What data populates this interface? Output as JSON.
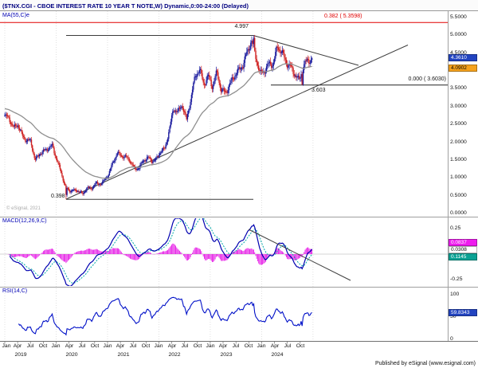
{
  "window": {
    "title": "($TNX.CGI - CBOE INTEREST RATE 10 YEAR T NOTE,W) Dynamic,0:00-24:00 (Delayed)"
  },
  "price_panel": {
    "indicator_label": "MA(55,C)e",
    "watermark": "© eSignal, 2021",
    "fib_upper_label": "0.382 ( 5.3598)",
    "fib_lower_label": "0.000 ( 3.6030)",
    "peak_label": "4.997",
    "low_label": "0.398",
    "level_label": "3.603",
    "axis_ticks": [
      "5.5000",
      "5.0000",
      "4.5000",
      "3.5000",
      "3.0000",
      "2.5000",
      "2.0000",
      "1.5000",
      "1.0000",
      "0.5000",
      "0.0000"
    ],
    "badges": {
      "last_price": {
        "text": "4.3610",
        "bg": "#2244c0",
        "fg": "#ffffff"
      },
      "ma_value": {
        "text": "4.0902",
        "bg": "#f5a21d",
        "fg": "#000000"
      }
    }
  },
  "macd_panel": {
    "indicator_label": "MACD(12,26,9,C)",
    "axis_ticks": [
      "0.25",
      "-0.25"
    ],
    "badges": [
      {
        "text": "0.0837",
        "bg": "#ee1cee",
        "fg": "#ffffff"
      },
      {
        "text": "0.0308",
        "bg": "#ffffff",
        "fg": "#000000"
      },
      {
        "text": "0.1145",
        "bg": "#0ba294",
        "fg": "#ffffff"
      }
    ]
  },
  "rsi_panel": {
    "indicator_label": "RSI(14,C)",
    "axis_ticks": [
      "100",
      "50",
      "0"
    ],
    "badge": {
      "text": "59.8343",
      "bg": "#2244c0",
      "fg": "#ffffff"
    }
  },
  "x_axis": {
    "quarter_names": [
      "Jan",
      "Apr",
      "Jul",
      "Oct"
    ],
    "year_labels": [
      "2019",
      "2020",
      "2021",
      "2022",
      "2023",
      "2024"
    ]
  },
  "footer": "Published by eSignal (www.esignal.com)",
  "colors": {
    "up_candle": "#1a1a9e",
    "down_candle": "#cf2020",
    "ma_line": "#8f8f8f",
    "macd_line": "#0000b0",
    "signal_line": "#00a8a8",
    "histogram": "#e619e6",
    "rsi_line": "#0010c8",
    "fib_line_red": "#e00000",
    "trendline": "#3c3c3c",
    "grid": "#d9d9d9",
    "axis_text": "#111111",
    "panel_label": "#0000b4",
    "title_text": "#000080"
  },
  "chart_data": [
    {
      "type": "line",
      "subtype": "weekly-candlestick-with-ema55",
      "title": "$TNX.CGI CBOE Interest Rate 10 Year T Note, weekly closes (estimated from chart)",
      "x_start": "2019-01",
      "x_end": "2024-12",
      "ylim": [
        0.0,
        5.5
      ],
      "monthly_close": [
        2.7,
        2.68,
        2.44,
        2.52,
        2.16,
        2.02,
        2.04,
        1.52,
        1.68,
        1.72,
        1.8,
        1.92,
        1.54,
        1.16,
        0.72,
        0.62,
        0.66,
        0.66,
        0.54,
        0.7,
        0.68,
        0.86,
        0.84,
        0.92,
        1.08,
        1.42,
        1.72,
        1.64,
        1.58,
        1.44,
        1.24,
        1.3,
        1.5,
        1.56,
        1.44,
        1.51,
        1.78,
        1.84,
        2.32,
        2.9,
        2.84,
        3.1,
        2.64,
        3.2,
        3.8,
        4.05,
        3.68,
        3.88,
        3.52,
        3.92,
        3.48,
        3.44,
        3.64,
        3.82,
        3.96,
        4.18,
        4.58,
        4.88,
        4.35,
        3.88,
        4.03,
        4.25,
        4.2,
        4.62,
        4.5,
        4.28,
        4.17,
        3.91,
        3.68,
        4.1,
        4.35,
        4.36
      ],
      "key_points": {
        "low_mar_2020": 0.398,
        "high_oct_2023": 4.997,
        "low_sep_2024": 3.603,
        "last_close": 4.361,
        "ma55_last": 4.0902,
        "fib_0382_level": 5.3598,
        "fib_0000_level": 3.603
      },
      "overlays": [
        "EMA(55) gray line",
        "red horizontal fib line at 5.3598",
        "horizontal line at 3.603",
        "range lines at 0.398 and 4.997",
        "ascending trendline from 2020 low",
        "descending trendline from 2023 high"
      ]
    },
    {
      "type": "line",
      "subtype": "macd-with-histogram",
      "title": "MACD(12,26,9,C) computed from weekly closes",
      "ylim": [
        -0.35,
        0.35
      ],
      "yticks": [
        0.25,
        -0.25
      ],
      "last_values": {
        "histogram": 0.0837,
        "macd_line": 0.1145,
        "signal_line": 0.0308
      },
      "overlays": [
        "descending trendline over 2023-2024 peaks"
      ]
    },
    {
      "type": "line",
      "subtype": "rsi",
      "title": "RSI(14,C) computed from weekly closes",
      "ylim": [
        0,
        100
      ],
      "yticks": [
        100,
        50,
        0
      ],
      "last_value": 59.8343
    }
  ]
}
